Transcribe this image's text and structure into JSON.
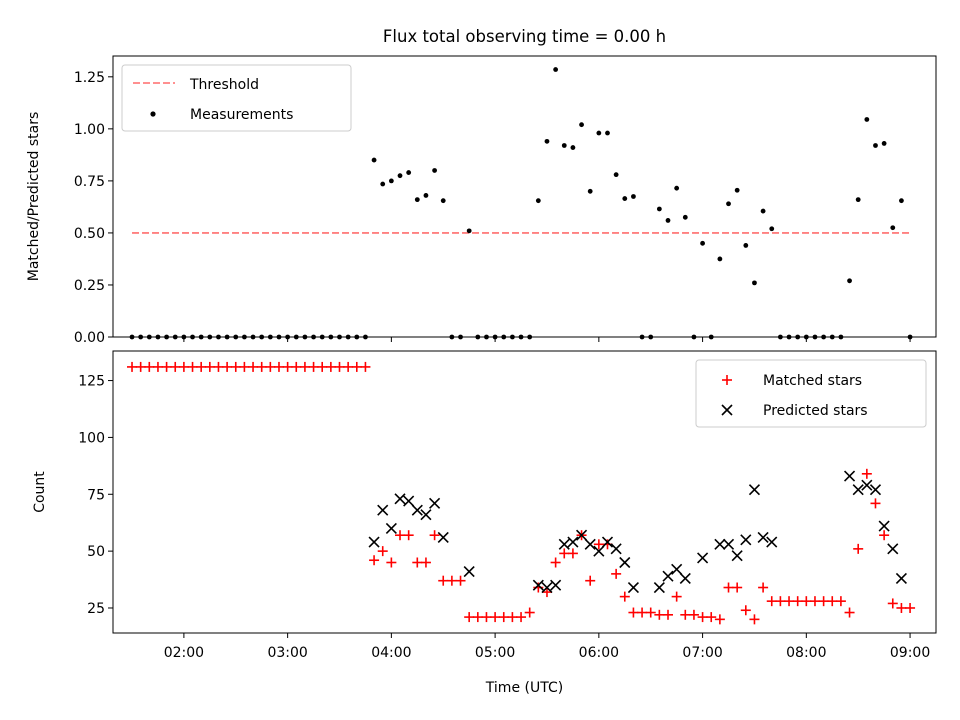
{
  "chart_data": [
    {
      "type": "scatter",
      "title": "Flux total observing time = 0.00 h",
      "ylabel": "Matched/Predicted stars",
      "xlabel": "",
      "xlim": [
        "01:19",
        "09:15"
      ],
      "ylim": [
        0,
        1.35
      ],
      "y_ticks": [
        "0.00",
        "0.25",
        "0.50",
        "0.75",
        "1.00",
        "1.25"
      ],
      "legend_position": "top-left",
      "threshold": {
        "name": "Threshold",
        "value": 0.5,
        "x_range": [
          "01:30",
          "09:00"
        ],
        "color": "#ff8080"
      },
      "series": [
        {
          "name": "Measurements",
          "color": "#000000",
          "points": [
            [
              "01:30",
              0
            ],
            [
              "01:35",
              0
            ],
            [
              "01:40",
              0
            ],
            [
              "01:45",
              0
            ],
            [
              "01:50",
              0
            ],
            [
              "01:55",
              0
            ],
            [
              "02:00",
              0
            ],
            [
              "02:05",
              0
            ],
            [
              "02:10",
              0
            ],
            [
              "02:15",
              0
            ],
            [
              "02:20",
              0
            ],
            [
              "02:25",
              0
            ],
            [
              "02:30",
              0
            ],
            [
              "02:35",
              0
            ],
            [
              "02:40",
              0
            ],
            [
              "02:45",
              0
            ],
            [
              "02:50",
              0
            ],
            [
              "02:55",
              0
            ],
            [
              "03:00",
              0
            ],
            [
              "03:05",
              0
            ],
            [
              "03:10",
              0
            ],
            [
              "03:15",
              0
            ],
            [
              "03:20",
              0
            ],
            [
              "03:25",
              0
            ],
            [
              "03:30",
              0
            ],
            [
              "03:35",
              0
            ],
            [
              "03:40",
              0
            ],
            [
              "03:45",
              0
            ],
            [
              "03:50",
              0.85
            ],
            [
              "03:55",
              0.735
            ],
            [
              "04:00",
              0.75
            ],
            [
              "04:05",
              0.775
            ],
            [
              "04:10",
              0.79
            ],
            [
              "04:15",
              0.66
            ],
            [
              "04:20",
              0.68
            ],
            [
              "04:25",
              0.8
            ],
            [
              "04:30",
              0.655
            ],
            [
              "04:35",
              0
            ],
            [
              "04:40",
              0
            ],
            [
              "04:45",
              0.51
            ],
            [
              "04:50",
              0
            ],
            [
              "04:55",
              0
            ],
            [
              "05:00",
              0
            ],
            [
              "05:05",
              0
            ],
            [
              "05:10",
              0
            ],
            [
              "05:15",
              0
            ],
            [
              "05:20",
              0
            ],
            [
              "05:25",
              0.655
            ],
            [
              "05:30",
              0.94
            ],
            [
              "05:35",
              1.285
            ],
            [
              "05:40",
              0.92
            ],
            [
              "05:45",
              0.91
            ],
            [
              "05:50",
              1.02
            ],
            [
              "05:55",
              0.7
            ],
            [
              "06:00",
              0.98
            ],
            [
              "06:05",
              0.98
            ],
            [
              "06:10",
              0.78
            ],
            [
              "06:15",
              0.665
            ],
            [
              "06:20",
              0.675
            ],
            [
              "06:25",
              0
            ],
            [
              "06:30",
              0
            ],
            [
              "06:35",
              0.615
            ],
            [
              "06:40",
              0.56
            ],
            [
              "06:45",
              0.715
            ],
            [
              "06:50",
              0.575
            ],
            [
              "06:55",
              0
            ],
            [
              "07:00",
              0.45
            ],
            [
              "07:05",
              0
            ],
            [
              "07:10",
              0.375
            ],
            [
              "07:15",
              0.64
            ],
            [
              "07:20",
              0.705
            ],
            [
              "07:25",
              0.44
            ],
            [
              "07:30",
              0.26
            ],
            [
              "07:35",
              0.605
            ],
            [
              "07:40",
              0.52
            ],
            [
              "07:45",
              0
            ],
            [
              "07:50",
              0
            ],
            [
              "07:55",
              0
            ],
            [
              "08:00",
              0
            ],
            [
              "08:05",
              0
            ],
            [
              "08:10",
              0
            ],
            [
              "08:15",
              0
            ],
            [
              "08:20",
              0
            ],
            [
              "08:25",
              0.27
            ],
            [
              "08:30",
              0.66
            ],
            [
              "08:35",
              1.045
            ],
            [
              "08:40",
              0.92
            ],
            [
              "08:45",
              0.93
            ],
            [
              "08:50",
              0.525
            ],
            [
              "08:55",
              0.655
            ],
            [
              "09:00",
              0
            ]
          ]
        }
      ]
    },
    {
      "type": "scatter",
      "title": "",
      "xlabel": "Time (UTC)",
      "ylabel": "Count",
      "xlim": [
        "01:19",
        "09:15"
      ],
      "ylim": [
        14,
        138
      ],
      "x_ticks": [
        "02:00",
        "03:00",
        "04:00",
        "05:00",
        "06:00",
        "07:00",
        "08:00",
        "09:00"
      ],
      "y_ticks": [
        "25",
        "50",
        "75",
        "100",
        "125"
      ],
      "legend_position": "top-right",
      "series": [
        {
          "name": "Matched stars",
          "marker": "plus",
          "color": "#ff0000",
          "points": [
            [
              "01:30",
              131
            ],
            [
              "01:35",
              131
            ],
            [
              "01:40",
              131
            ],
            [
              "01:45",
              131
            ],
            [
              "01:50",
              131
            ],
            [
              "01:55",
              131
            ],
            [
              "02:00",
              131
            ],
            [
              "02:05",
              131
            ],
            [
              "02:10",
              131
            ],
            [
              "02:15",
              131
            ],
            [
              "02:20",
              131
            ],
            [
              "02:25",
              131
            ],
            [
              "02:30",
              131
            ],
            [
              "02:35",
              131
            ],
            [
              "02:40",
              131
            ],
            [
              "02:45",
              131
            ],
            [
              "02:50",
              131
            ],
            [
              "02:55",
              131
            ],
            [
              "03:00",
              131
            ],
            [
              "03:05",
              131
            ],
            [
              "03:10",
              131
            ],
            [
              "03:15",
              131
            ],
            [
              "03:20",
              131
            ],
            [
              "03:25",
              131
            ],
            [
              "03:30",
              131
            ],
            [
              "03:35",
              131
            ],
            [
              "03:40",
              131
            ],
            [
              "03:45",
              131
            ],
            [
              "03:50",
              46
            ],
            [
              "03:55",
              50
            ],
            [
              "04:00",
              45
            ],
            [
              "04:05",
              57
            ],
            [
              "04:10",
              57
            ],
            [
              "04:15",
              45
            ],
            [
              "04:20",
              45
            ],
            [
              "04:25",
              57
            ],
            [
              "04:30",
              37
            ],
            [
              "04:35",
              37
            ],
            [
              "04:40",
              37
            ],
            [
              "04:45",
              21
            ],
            [
              "04:50",
              21
            ],
            [
              "04:55",
              21
            ],
            [
              "05:00",
              21
            ],
            [
              "05:05",
              21
            ],
            [
              "05:10",
              21
            ],
            [
              "05:15",
              21
            ],
            [
              "05:20",
              23
            ],
            [
              "05:25",
              34
            ],
            [
              "05:30",
              32
            ],
            [
              "05:35",
              45
            ],
            [
              "05:40",
              49
            ],
            [
              "05:45",
              49
            ],
            [
              "05:50",
              57
            ],
            [
              "05:55",
              37
            ],
            [
              "06:00",
              53
            ],
            [
              "06:05",
              53
            ],
            [
              "06:10",
              40
            ],
            [
              "06:15",
              30
            ],
            [
              "06:20",
              23
            ],
            [
              "06:25",
              23
            ],
            [
              "06:30",
              23
            ],
            [
              "06:35",
              22
            ],
            [
              "06:40",
              22
            ],
            [
              "06:45",
              30
            ],
            [
              "06:50",
              22
            ],
            [
              "06:55",
              22
            ],
            [
              "07:00",
              21
            ],
            [
              "07:05",
              21
            ],
            [
              "07:10",
              20
            ],
            [
              "07:15",
              34
            ],
            [
              "07:20",
              34
            ],
            [
              "07:25",
              24
            ],
            [
              "07:30",
              20
            ],
            [
              "07:35",
              34
            ],
            [
              "07:40",
              28
            ],
            [
              "07:45",
              28
            ],
            [
              "07:50",
              28
            ],
            [
              "07:55",
              28
            ],
            [
              "08:00",
              28
            ],
            [
              "08:05",
              28
            ],
            [
              "08:10",
              28
            ],
            [
              "08:15",
              28
            ],
            [
              "08:20",
              28
            ],
            [
              "08:25",
              23
            ],
            [
              "08:30",
              51
            ],
            [
              "08:35",
              84
            ],
            [
              "08:40",
              71
            ],
            [
              "08:45",
              57
            ],
            [
              "08:50",
              27
            ],
            [
              "08:55",
              25
            ],
            [
              "09:00",
              25
            ]
          ]
        },
        {
          "name": "Predicted stars",
          "marker": "x",
          "color": "#000000",
          "points": [
            [
              "03:50",
              54
            ],
            [
              "03:55",
              68
            ],
            [
              "04:00",
              60
            ],
            [
              "04:05",
              73
            ],
            [
              "04:10",
              72
            ],
            [
              "04:15",
              68
            ],
            [
              "04:20",
              66
            ],
            [
              "04:25",
              71
            ],
            [
              "04:30",
              56
            ],
            [
              "04:45",
              41
            ],
            [
              "05:25",
              35
            ],
            [
              "05:30",
              34
            ],
            [
              "05:35",
              35
            ],
            [
              "05:40",
              53
            ],
            [
              "05:45",
              54
            ],
            [
              "05:50",
              57
            ],
            [
              "05:55",
              53
            ],
            [
              "06:00",
              50
            ],
            [
              "06:05",
              54
            ],
            [
              "06:10",
              51
            ],
            [
              "06:15",
              45
            ],
            [
              "06:20",
              34
            ],
            [
              "06:35",
              34
            ],
            [
              "06:40",
              39
            ],
            [
              "06:45",
              42
            ],
            [
              "06:50",
              38
            ],
            [
              "07:00",
              47
            ],
            [
              "07:10",
              53
            ],
            [
              "07:15",
              53
            ],
            [
              "07:20",
              48
            ],
            [
              "07:25",
              55
            ],
            [
              "07:30",
              77
            ],
            [
              "07:35",
              56
            ],
            [
              "07:40",
              54
            ],
            [
              "08:25",
              83
            ],
            [
              "08:30",
              77
            ],
            [
              "08:35",
              79
            ],
            [
              "08:40",
              77
            ],
            [
              "08:45",
              61
            ],
            [
              "08:50",
              51
            ],
            [
              "08:55",
              38
            ]
          ]
        }
      ]
    }
  ]
}
